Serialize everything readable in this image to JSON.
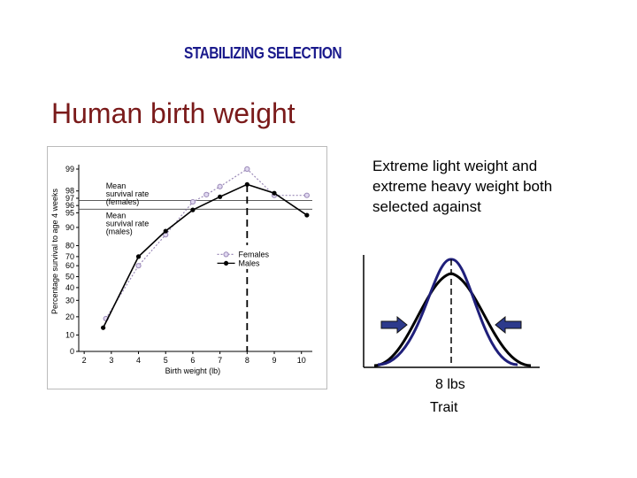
{
  "header": {
    "title": "STABILIZING SELECTION"
  },
  "slide_title": "Human birth weight",
  "description": "Extreme light weight and extreme heavy weight both selected against",
  "selection_curve": {
    "trait_value": "8 lbs",
    "trait_label": "Trait"
  },
  "colors": {
    "females": "#9b8ab8",
    "males": "#000000",
    "selection_curve": "#1f1f7a",
    "header": "#1a1a8c",
    "title": "#7a1a1a"
  },
  "chart_data": {
    "type": "scatter",
    "xlabel": "Birth weight (lb)",
    "ylabel": "Percentage survival to age 4 weeks",
    "x_ticks": [
      "2",
      "3",
      "4",
      "5",
      "6",
      "7",
      "8",
      "9",
      "10"
    ],
    "y_ticks": [
      "0",
      "10",
      "20",
      "30",
      "40",
      "50",
      "60",
      "70",
      "80",
      "90",
      "95",
      "96",
      "97",
      "98",
      "99"
    ],
    "y_scale": "probit",
    "xlim": [
      1.8,
      10.4
    ],
    "legend": {
      "placement": "center-right",
      "entries": [
        "Females",
        "Males"
      ]
    },
    "annotations": [
      {
        "text": "Mean survival rate (females)",
        "y": 96.7
      },
      {
        "text": "Mean survival rate (males)",
        "y": 95.5
      }
    ],
    "optimum_x": 8,
    "series": [
      {
        "name": "Females",
        "x": [
          2.8,
          4.0,
          5.0,
          6.0,
          6.5,
          7.0,
          8.0,
          9.0,
          10.2
        ],
        "y": [
          19,
          60,
          86,
          96.5,
          97.5,
          98.2,
          99.0,
          97.4,
          97.4
        ]
      },
      {
        "name": "Males",
        "x": [
          2.7,
          4.0,
          5.0,
          6.0,
          7.0,
          8.0,
          9.0,
          10.2
        ],
        "y": [
          14,
          70,
          88,
          95.4,
          97.2,
          98.3,
          97.7,
          94.2
        ]
      }
    ]
  }
}
